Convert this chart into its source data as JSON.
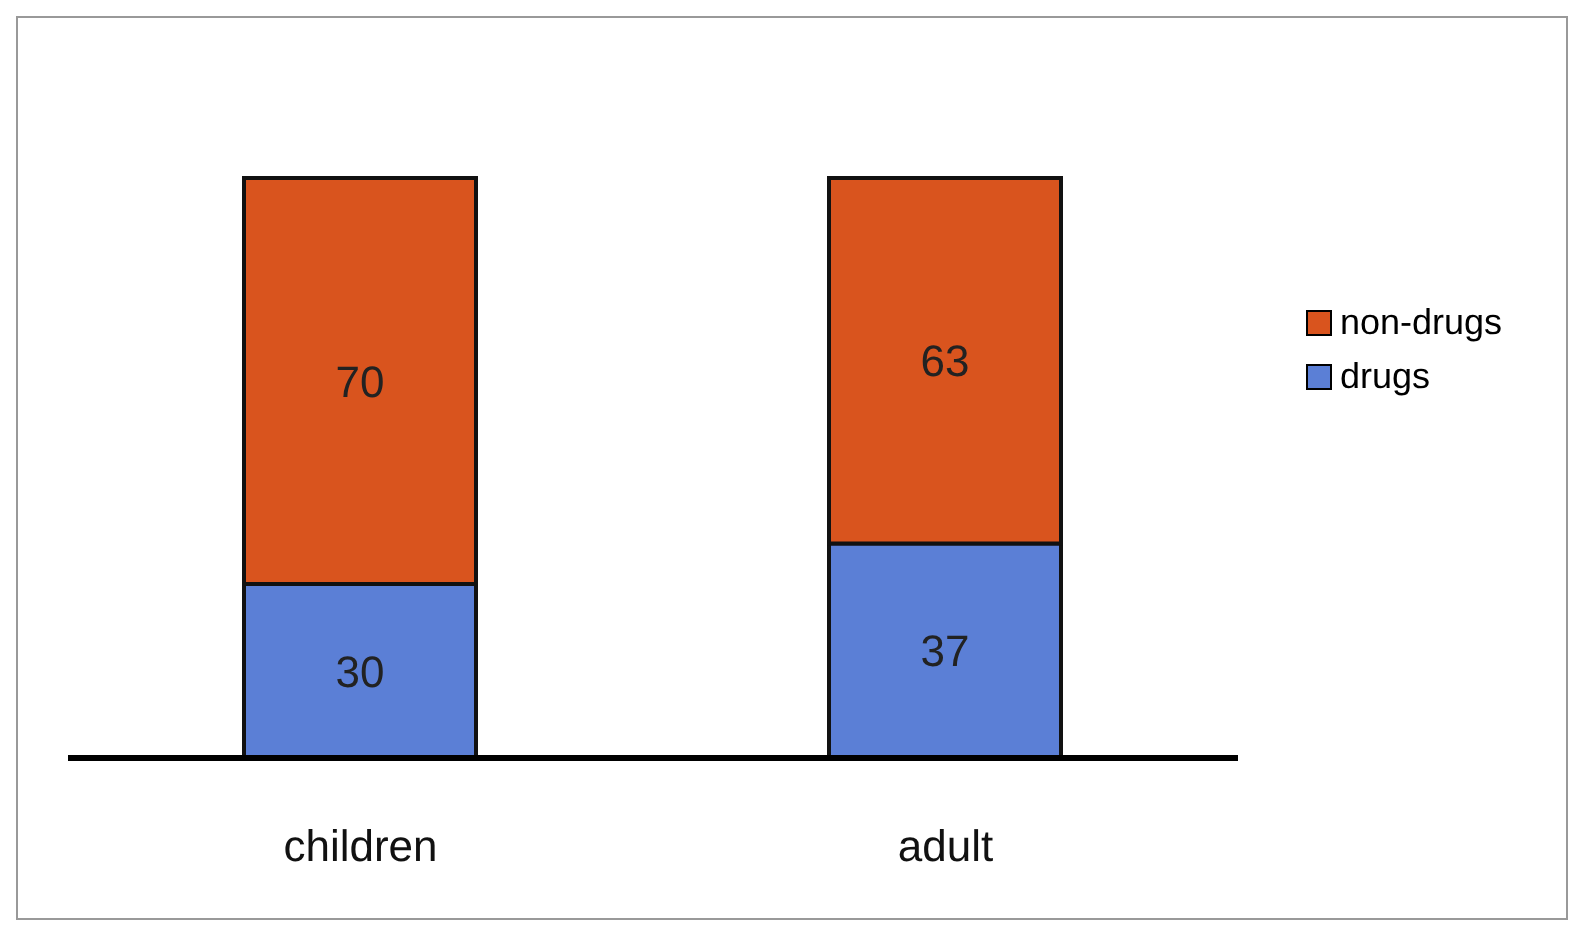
{
  "chart_data": {
    "type": "bar",
    "stacked": true,
    "categories": [
      "children",
      "adult"
    ],
    "series": [
      {
        "name": "drugs",
        "color": "#5b7fd6",
        "values": [
          30,
          37
        ]
      },
      {
        "name": "non-drugs",
        "color": "#d9541e",
        "values": [
          70,
          63
        ]
      }
    ],
    "data_labels": true,
    "legend": "right",
    "grid": false
  }
}
